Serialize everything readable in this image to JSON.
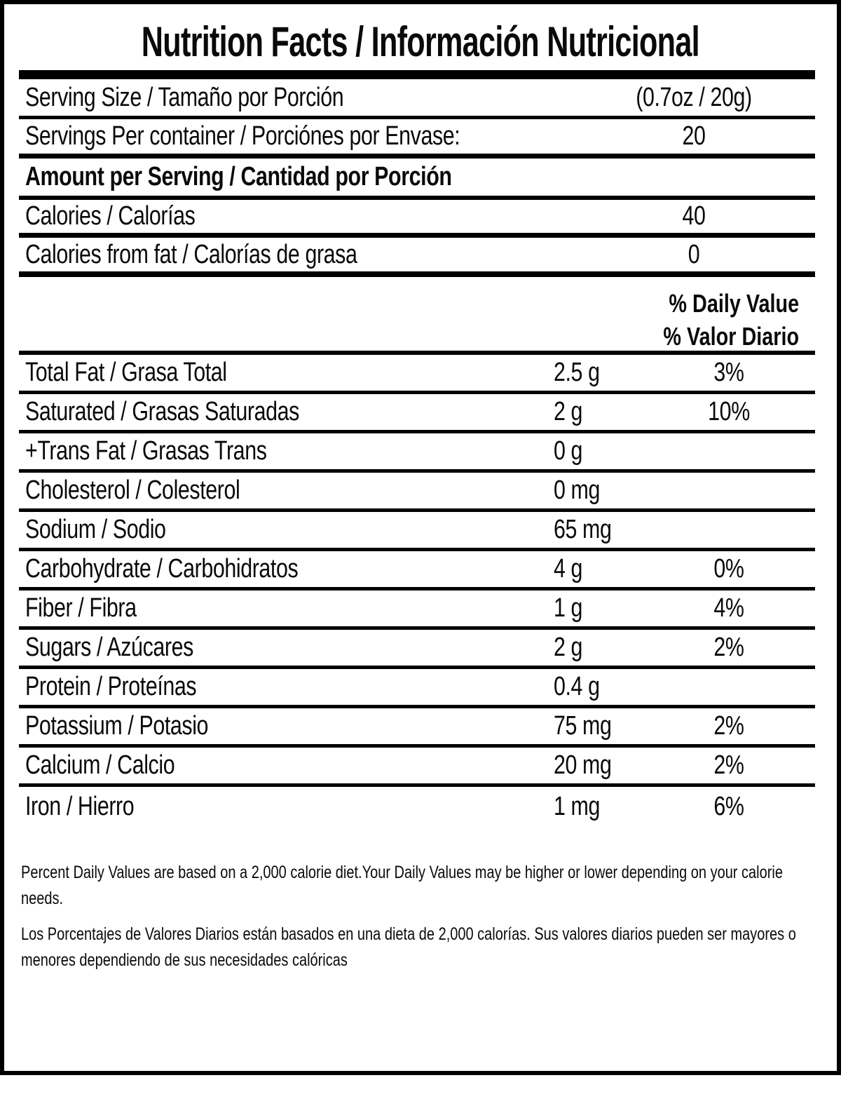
{
  "title": "Nutrition Facts / Información Nutricional",
  "serving": {
    "size_label": "Serving Size / Tamaño por Porción",
    "size_value": "(0.7oz / 20g)",
    "per_container_label": "Servings Per container / Porciónes por Envase:",
    "per_container_value": "20"
  },
  "amount_per_serving": {
    "label": "Amount per Serving / Cantidad por Porción"
  },
  "calories": {
    "label": "Calories / Calorías",
    "value": "40"
  },
  "calories_from_fat": {
    "label": "Calories from fat / Calorías de grasa",
    "value": "0"
  },
  "daily_value_header": {
    "line1": "% Daily Value",
    "line2": "% Valor Diario"
  },
  "nutrients": [
    {
      "label": "Total Fat / Grasa Total",
      "amount": "2.5 g",
      "dv": "3%"
    },
    {
      "label": "Saturated / Grasas Saturadas",
      "amount": "2 g",
      "dv": "10%"
    },
    {
      "label": "+Trans Fat / Grasas Trans",
      "amount": "0 g",
      "dv": ""
    },
    {
      "label": "Cholesterol / Colesterol",
      "amount": "0 mg",
      "dv": ""
    },
    {
      "label": "Sodium / Sodio",
      "amount": "65 mg",
      "dv": ""
    },
    {
      "label": "Carbohydrate / Carbohidratos",
      "amount": "4 g",
      "dv": "0%"
    },
    {
      "label": "Fiber / Fibra",
      "amount": "1 g",
      "dv": "4%"
    },
    {
      "label": "Sugars / Azúcares",
      "amount": "2 g",
      "dv": "2%"
    },
    {
      "label": "Protein / Proteínas",
      "amount": "0.4 g",
      "dv": ""
    },
    {
      "label": "Potassium / Potasio",
      "amount": "75 mg",
      "dv": "2%"
    },
    {
      "label": "Calcium / Calcio",
      "amount": "20 mg",
      "dv": "2%"
    },
    {
      "label": "Iron / Hierro",
      "amount": "1 mg",
      "dv": "6%"
    }
  ],
  "footnotes": {
    "english": "Percent Daily Values are based on a 2,000 calorie diet.Your Daily Values may be higher or lower depending on your calorie needs.",
    "spanish": "Los Porcentajes de Valores Diarios están basados en una dieta de 2,000 calorías. Sus valores diarios pueden ser mayores o menores dependiendo de sus necesidades calóricas"
  },
  "colors": {
    "text": "#0a0a0a",
    "background": "#ffffff",
    "border": "#000000"
  }
}
